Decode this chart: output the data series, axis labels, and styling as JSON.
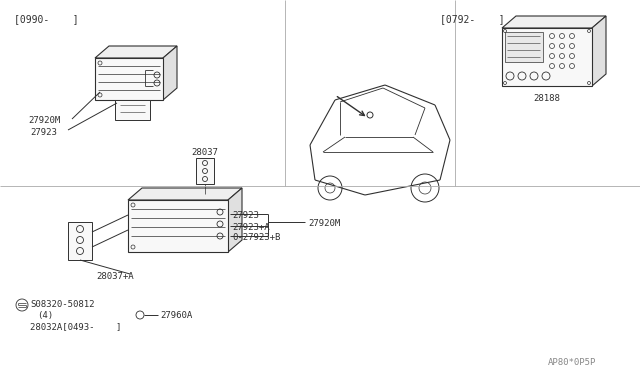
{
  "bg_color": "#ffffff",
  "line_color": "#303030",
  "diagram_code": "AP80*0P5P",
  "bracket_top_left": "[0990-    ]",
  "bracket_top_right": "[0792-    ]",
  "parts": {
    "27920M_top": "27920M",
    "27923_top": "27923",
    "28037_mid": "28037",
    "28188": "28188",
    "27923_bot": "27923",
    "27923A": "27923+A",
    "27923B": "0-27923+B",
    "27920M_bot": "27920M",
    "28037A": "28037+A",
    "27960A": "27960A",
    "08320": "S08320-50812",
    "4": "(4)",
    "28032A": "28032A[0493-    ]"
  }
}
